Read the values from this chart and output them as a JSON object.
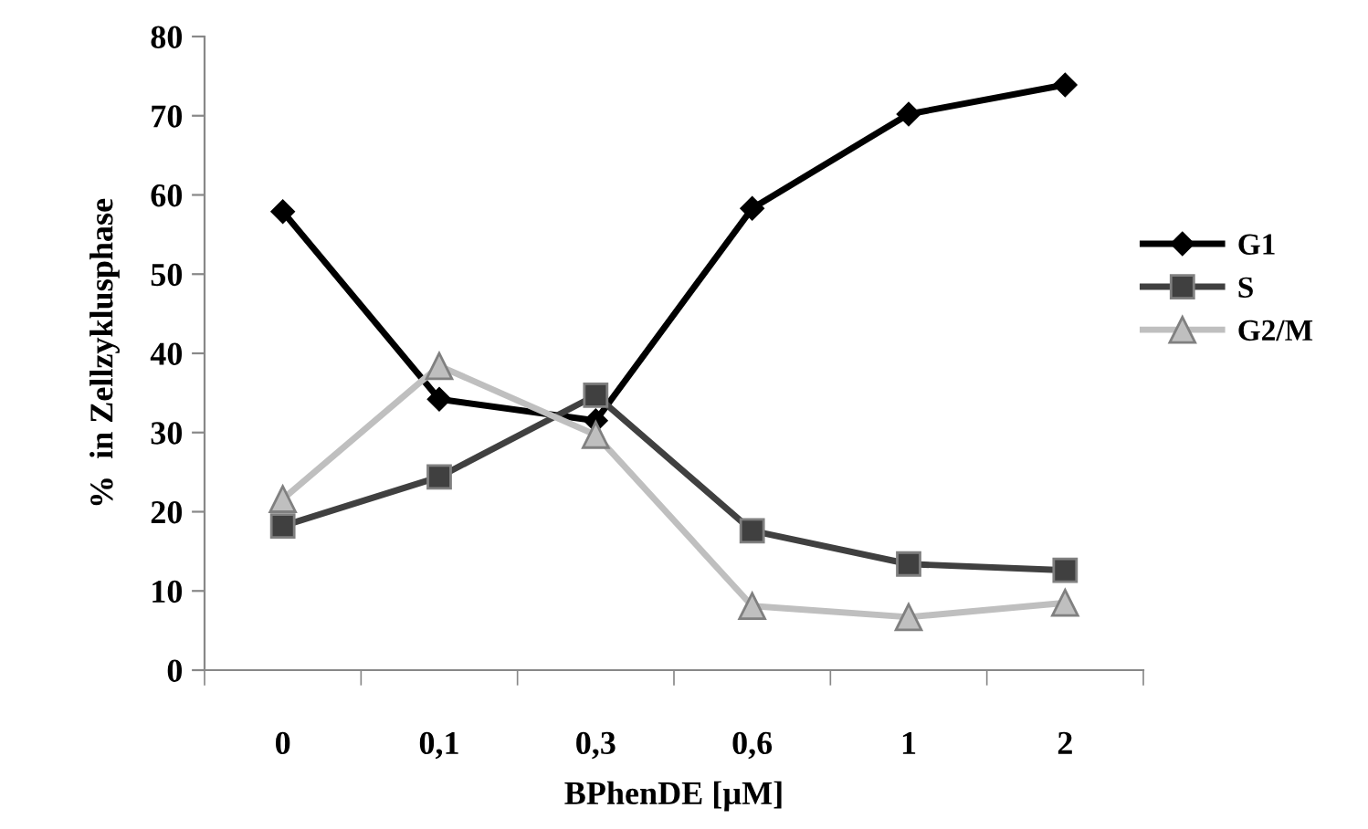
{
  "chart_data": {
    "type": "line",
    "xlabel": "BPhenDE [µM]",
    "ylabel": "%  in Zellzyklusphase",
    "categories": [
      "0",
      "0,1",
      "0,3",
      "0,6",
      "1",
      "2"
    ],
    "series": [
      {
        "name": "G1",
        "color": "#000000",
        "marker": "diamond",
        "values": [
          57.9,
          34.2,
          31.5,
          58.3,
          70.2,
          73.9
        ]
      },
      {
        "name": "S",
        "color": "#404040",
        "marker": "square",
        "values": [
          18.2,
          24.4,
          34.7,
          17.6,
          13.4,
          12.6
        ]
      },
      {
        "name": "G2/M",
        "color": "#bfbfbf",
        "marker": "triangle",
        "values": [
          21.6,
          38.4,
          29.7,
          8.1,
          6.7,
          8.5
        ]
      }
    ],
    "ylim": [
      0,
      80
    ],
    "yticks": [
      0,
      10,
      20,
      30,
      40,
      50,
      60,
      70,
      80
    ],
    "grid": false,
    "legend": "right",
    "line_style": "solid"
  }
}
